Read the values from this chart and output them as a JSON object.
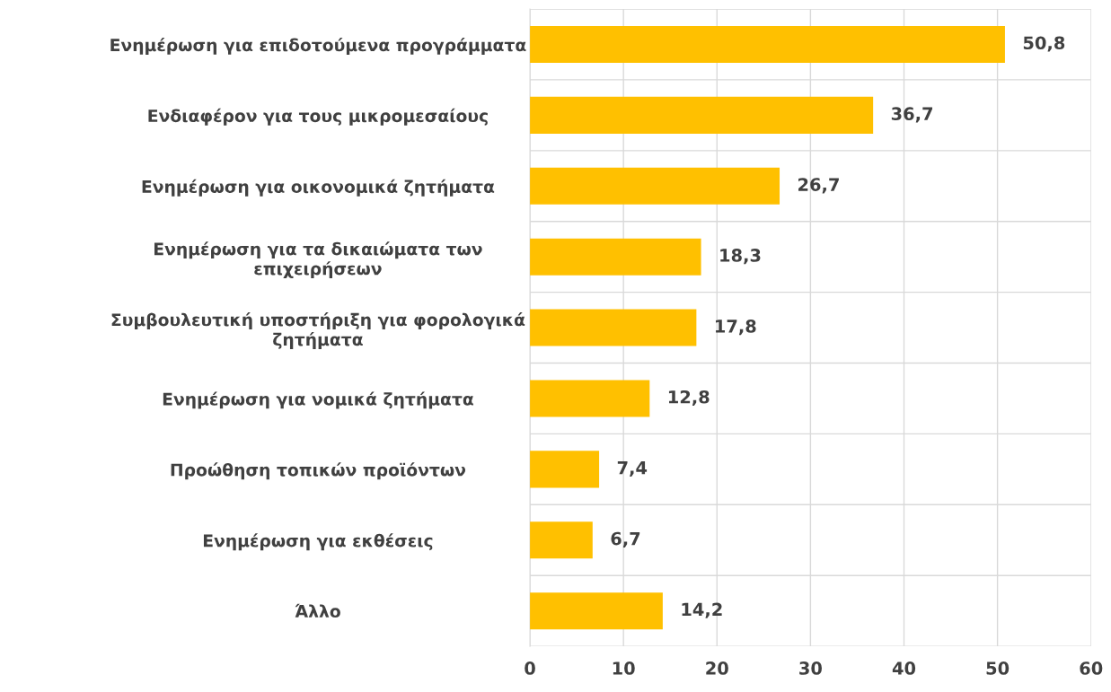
{
  "chart_data": {
    "type": "bar",
    "orientation": "horizontal",
    "categories": [
      "Ενημέρωση για επιδοτούμενα προγράμματα",
      "Ενδιαφέρον για τους μικρομεσαίους",
      "Ενημέρωση για οικονομικά ζητήματα",
      "Ενημέρωση για τα δικαιώματα των\nεπιχειρήσεων",
      "Συμβουλευτική υποστήριξη για φορολογικά\nζητήματα",
      "Ενημέρωση για νομικά ζητήματα",
      "Προώθηση τοπικών προϊόντων",
      "Ενημέρωση για εκθέσεις",
      "Άλλο"
    ],
    "values": [
      50.8,
      36.7,
      26.7,
      18.3,
      17.8,
      12.8,
      7.4,
      6.7,
      14.2
    ],
    "value_labels": [
      "50,8",
      "36,7",
      "26,7",
      "18,3",
      "17,8",
      "12,8",
      "7,4",
      "6,7",
      "14,2"
    ],
    "color": "#ffc000",
    "xlim": [
      0,
      60
    ],
    "xticks": [
      0,
      10,
      20,
      30,
      40,
      50,
      60
    ],
    "grid": true
  }
}
